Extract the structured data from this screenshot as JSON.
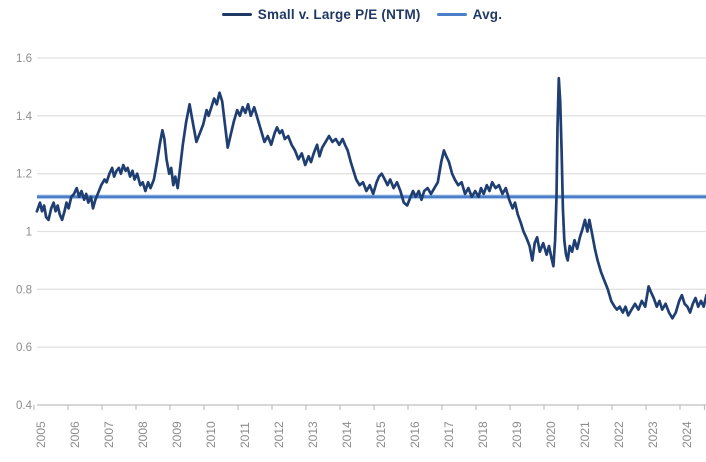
{
  "chart_data": {
    "type": "line",
    "title": "",
    "legend_position": "top",
    "grid": "horizontal",
    "legend": [
      {
        "label": "Small v. Large P/E (NTM)",
        "color": "#1F3864"
      },
      {
        "label": "Avg.",
        "color": "#4A7EC8"
      }
    ],
    "x_axis": {
      "tick_labels": [
        "2005",
        "2006",
        "2007",
        "2008",
        "2009",
        "2010",
        "2011",
        "2012",
        "2013",
        "2014",
        "2015",
        "2016",
        "2017",
        "2018",
        "2019",
        "2020",
        "2021",
        "2022",
        "2023",
        "2024"
      ],
      "tick_years": [
        2005,
        2006,
        2007,
        2008,
        2009,
        2010,
        2011,
        2012,
        2013,
        2014,
        2015,
        2016,
        2017,
        2018,
        2019,
        2020,
        2021,
        2022,
        2023,
        2024
      ],
      "range": [
        2004.9,
        2024.6
      ],
      "label_rotation_deg": -90
    },
    "y_axis": {
      "tick_labels": [
        "1.6",
        "1.4",
        "1.2",
        "1",
        "0.8",
        "0.6",
        "0.4"
      ],
      "tick_values": [
        1.6,
        1.4,
        1.2,
        1.0,
        0.8,
        0.6,
        0.4
      ],
      "range": [
        0.4,
        1.6
      ]
    },
    "avg": {
      "label": "Avg.",
      "value": 1.12,
      "color": "#4A7EC8"
    },
    "series": [
      {
        "name": "Small v. Large P/E (NTM)",
        "color": "#1F3E72",
        "points": [
          [
            2004.91,
            1.07
          ],
          [
            2005.0,
            1.1
          ],
          [
            2005.06,
            1.07
          ],
          [
            2005.12,
            1.09
          ],
          [
            2005.18,
            1.05
          ],
          [
            2005.25,
            1.04
          ],
          [
            2005.33,
            1.08
          ],
          [
            2005.4,
            1.1
          ],
          [
            2005.46,
            1.07
          ],
          [
            2005.52,
            1.09
          ],
          [
            2005.58,
            1.06
          ],
          [
            2005.65,
            1.04
          ],
          [
            2005.72,
            1.07
          ],
          [
            2005.78,
            1.1
          ],
          [
            2005.84,
            1.08
          ],
          [
            2005.92,
            1.12
          ],
          [
            2006.0,
            1.13
          ],
          [
            2006.08,
            1.15
          ],
          [
            2006.15,
            1.12
          ],
          [
            2006.22,
            1.14
          ],
          [
            2006.3,
            1.11
          ],
          [
            2006.36,
            1.13
          ],
          [
            2006.42,
            1.1
          ],
          [
            2006.5,
            1.12
          ],
          [
            2006.56,
            1.08
          ],
          [
            2006.63,
            1.11
          ],
          [
            2006.7,
            1.13
          ],
          [
            2006.8,
            1.16
          ],
          [
            2006.9,
            1.18
          ],
          [
            2006.96,
            1.17
          ],
          [
            2007.04,
            1.2
          ],
          [
            2007.12,
            1.22
          ],
          [
            2007.18,
            1.19
          ],
          [
            2007.25,
            1.21
          ],
          [
            2007.32,
            1.22
          ],
          [
            2007.38,
            1.2
          ],
          [
            2007.45,
            1.23
          ],
          [
            2007.52,
            1.21
          ],
          [
            2007.58,
            1.22
          ],
          [
            2007.65,
            1.19
          ],
          [
            2007.72,
            1.21
          ],
          [
            2007.78,
            1.18
          ],
          [
            2007.86,
            1.2
          ],
          [
            2007.95,
            1.16
          ],
          [
            2008.02,
            1.17
          ],
          [
            2008.1,
            1.14
          ],
          [
            2008.18,
            1.17
          ],
          [
            2008.25,
            1.15
          ],
          [
            2008.35,
            1.18
          ],
          [
            2008.44,
            1.24
          ],
          [
            2008.52,
            1.3
          ],
          [
            2008.6,
            1.35
          ],
          [
            2008.66,
            1.32
          ],
          [
            2008.72,
            1.25
          ],
          [
            2008.8,
            1.2
          ],
          [
            2008.86,
            1.22
          ],
          [
            2008.92,
            1.16
          ],
          [
            2008.98,
            1.19
          ],
          [
            2009.05,
            1.15
          ],
          [
            2009.12,
            1.22
          ],
          [
            2009.2,
            1.3
          ],
          [
            2009.3,
            1.38
          ],
          [
            2009.4,
            1.44
          ],
          [
            2009.46,
            1.4
          ],
          [
            2009.52,
            1.36
          ],
          [
            2009.6,
            1.31
          ],
          [
            2009.7,
            1.34
          ],
          [
            2009.8,
            1.37
          ],
          [
            2009.9,
            1.42
          ],
          [
            2009.96,
            1.4
          ],
          [
            2010.04,
            1.43
          ],
          [
            2010.12,
            1.46
          ],
          [
            2010.2,
            1.44
          ],
          [
            2010.28,
            1.48
          ],
          [
            2010.36,
            1.45
          ],
          [
            2010.45,
            1.36
          ],
          [
            2010.52,
            1.29
          ],
          [
            2010.6,
            1.33
          ],
          [
            2010.7,
            1.38
          ],
          [
            2010.8,
            1.42
          ],
          [
            2010.88,
            1.4
          ],
          [
            2010.96,
            1.43
          ],
          [
            2011.04,
            1.41
          ],
          [
            2011.12,
            1.44
          ],
          [
            2011.2,
            1.4
          ],
          [
            2011.3,
            1.43
          ],
          [
            2011.4,
            1.39
          ],
          [
            2011.5,
            1.35
          ],
          [
            2011.6,
            1.31
          ],
          [
            2011.7,
            1.33
          ],
          [
            2011.8,
            1.3
          ],
          [
            2011.9,
            1.34
          ],
          [
            2011.97,
            1.36
          ],
          [
            2012.05,
            1.34
          ],
          [
            2012.12,
            1.35
          ],
          [
            2012.2,
            1.32
          ],
          [
            2012.3,
            1.33
          ],
          [
            2012.4,
            1.3
          ],
          [
            2012.5,
            1.28
          ],
          [
            2012.6,
            1.25
          ],
          [
            2012.7,
            1.27
          ],
          [
            2012.8,
            1.23
          ],
          [
            2012.9,
            1.26
          ],
          [
            2012.97,
            1.24
          ],
          [
            2013.05,
            1.27
          ],
          [
            2013.15,
            1.3
          ],
          [
            2013.22,
            1.26
          ],
          [
            2013.3,
            1.29
          ],
          [
            2013.4,
            1.31
          ],
          [
            2013.5,
            1.33
          ],
          [
            2013.6,
            1.31
          ],
          [
            2013.7,
            1.32
          ],
          [
            2013.8,
            1.3
          ],
          [
            2013.9,
            1.32
          ],
          [
            2013.97,
            1.3
          ],
          [
            2014.05,
            1.28
          ],
          [
            2014.14,
            1.24
          ],
          [
            2014.22,
            1.21
          ],
          [
            2014.3,
            1.18
          ],
          [
            2014.4,
            1.16
          ],
          [
            2014.5,
            1.17
          ],
          [
            2014.6,
            1.14
          ],
          [
            2014.7,
            1.16
          ],
          [
            2014.8,
            1.13
          ],
          [
            2014.9,
            1.17
          ],
          [
            2014.97,
            1.19
          ],
          [
            2015.05,
            1.2
          ],
          [
            2015.14,
            1.18
          ],
          [
            2015.22,
            1.16
          ],
          [
            2015.3,
            1.18
          ],
          [
            2015.4,
            1.15
          ],
          [
            2015.5,
            1.17
          ],
          [
            2015.6,
            1.14
          ],
          [
            2015.7,
            1.1
          ],
          [
            2015.8,
            1.09
          ],
          [
            2015.9,
            1.12
          ],
          [
            2015.97,
            1.14
          ],
          [
            2016.05,
            1.12
          ],
          [
            2016.14,
            1.14
          ],
          [
            2016.22,
            1.11
          ],
          [
            2016.3,
            1.14
          ],
          [
            2016.4,
            1.15
          ],
          [
            2016.5,
            1.13
          ],
          [
            2016.6,
            1.15
          ],
          [
            2016.7,
            1.17
          ],
          [
            2016.8,
            1.24
          ],
          [
            2016.88,
            1.28
          ],
          [
            2016.95,
            1.26
          ],
          [
            2017.03,
            1.24
          ],
          [
            2017.12,
            1.2
          ],
          [
            2017.2,
            1.18
          ],
          [
            2017.3,
            1.16
          ],
          [
            2017.4,
            1.17
          ],
          [
            2017.5,
            1.13
          ],
          [
            2017.6,
            1.15
          ],
          [
            2017.7,
            1.12
          ],
          [
            2017.8,
            1.14
          ],
          [
            2017.9,
            1.12
          ],
          [
            2017.97,
            1.15
          ],
          [
            2018.05,
            1.13
          ],
          [
            2018.14,
            1.16
          ],
          [
            2018.22,
            1.14
          ],
          [
            2018.3,
            1.17
          ],
          [
            2018.4,
            1.15
          ],
          [
            2018.5,
            1.16
          ],
          [
            2018.6,
            1.13
          ],
          [
            2018.7,
            1.15
          ],
          [
            2018.8,
            1.11
          ],
          [
            2018.9,
            1.08
          ],
          [
            2018.97,
            1.1
          ],
          [
            2019.05,
            1.06
          ],
          [
            2019.14,
            1.03
          ],
          [
            2019.22,
            1.0
          ],
          [
            2019.3,
            0.98
          ],
          [
            2019.4,
            0.95
          ],
          [
            2019.48,
            0.9
          ],
          [
            2019.55,
            0.96
          ],
          [
            2019.62,
            0.98
          ],
          [
            2019.7,
            0.93
          ],
          [
            2019.8,
            0.96
          ],
          [
            2019.9,
            0.92
          ],
          [
            2019.97,
            0.95
          ],
          [
            2020.04,
            0.91
          ],
          [
            2020.1,
            0.88
          ],
          [
            2020.15,
            0.97
          ],
          [
            2020.19,
            1.12
          ],
          [
            2020.22,
            1.36
          ],
          [
            2020.26,
            1.53
          ],
          [
            2020.3,
            1.45
          ],
          [
            2020.34,
            1.28
          ],
          [
            2020.38,
            1.08
          ],
          [
            2020.42,
            0.97
          ],
          [
            2020.47,
            0.92
          ],
          [
            2020.52,
            0.9
          ],
          [
            2020.58,
            0.95
          ],
          [
            2020.65,
            0.93
          ],
          [
            2020.72,
            0.97
          ],
          [
            2020.8,
            0.94
          ],
          [
            2020.88,
            0.98
          ],
          [
            2020.96,
            1.01
          ],
          [
            2021.03,
            1.04
          ],
          [
            2021.1,
            1.0
          ],
          [
            2021.16,
            1.04
          ],
          [
            2021.24,
            0.99
          ],
          [
            2021.32,
            0.94
          ],
          [
            2021.4,
            0.9
          ],
          [
            2021.5,
            0.86
          ],
          [
            2021.6,
            0.83
          ],
          [
            2021.7,
            0.8
          ],
          [
            2021.8,
            0.76
          ],
          [
            2021.9,
            0.74
          ],
          [
            2021.97,
            0.73
          ],
          [
            2022.05,
            0.74
          ],
          [
            2022.14,
            0.72
          ],
          [
            2022.22,
            0.74
          ],
          [
            2022.3,
            0.71
          ],
          [
            2022.4,
            0.73
          ],
          [
            2022.5,
            0.75
          ],
          [
            2022.6,
            0.73
          ],
          [
            2022.7,
            0.76
          ],
          [
            2022.8,
            0.74
          ],
          [
            2022.9,
            0.81
          ],
          [
            2022.97,
            0.79
          ],
          [
            2023.05,
            0.77
          ],
          [
            2023.14,
            0.74
          ],
          [
            2023.22,
            0.76
          ],
          [
            2023.3,
            0.73
          ],
          [
            2023.4,
            0.75
          ],
          [
            2023.5,
            0.72
          ],
          [
            2023.6,
            0.7
          ],
          [
            2023.7,
            0.72
          ],
          [
            2023.8,
            0.76
          ],
          [
            2023.88,
            0.78
          ],
          [
            2023.96,
            0.75
          ],
          [
            2024.04,
            0.74
          ],
          [
            2024.12,
            0.72
          ],
          [
            2024.2,
            0.75
          ],
          [
            2024.28,
            0.77
          ],
          [
            2024.36,
            0.74
          ],
          [
            2024.44,
            0.76
          ],
          [
            2024.52,
            0.74
          ],
          [
            2024.6,
            0.78
          ]
        ]
      }
    ]
  },
  "colors": {
    "background": "#FFFFFF",
    "gridline": "#E2E2E2",
    "axis_line": "#BFBFBF",
    "tick_text": "#8C8C8C",
    "legend_text": "#1F3864",
    "series_line": "#1F3E72",
    "avg_line": "#4A7EC8",
    "avg_line_halo": "#A9C7EA"
  }
}
